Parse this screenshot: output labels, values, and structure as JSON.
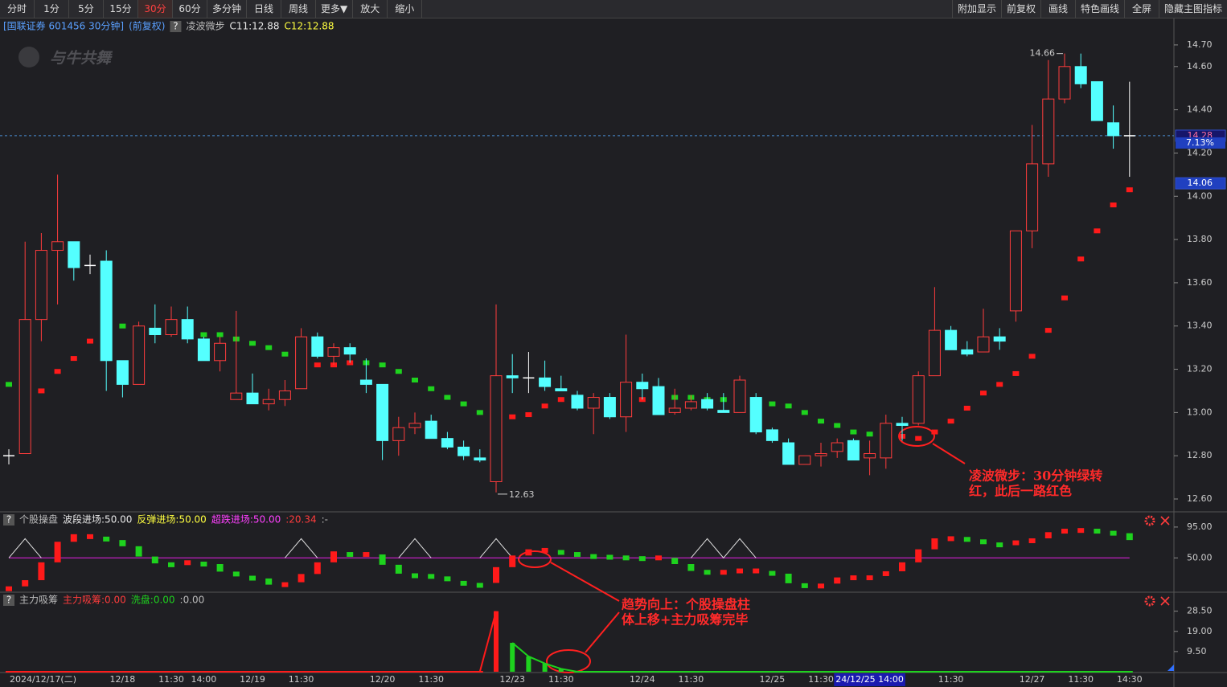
{
  "toolbar": {
    "left": [
      "分时",
      "1分",
      "5分",
      "15分",
      "30分",
      "60分",
      "多分钟",
      "日线",
      "周线",
      "更多▼",
      "放大",
      "缩小"
    ],
    "active_index": 4,
    "right": [
      "附加显示",
      "前复权",
      "画线",
      "特色画线",
      "全屏",
      "隐藏主图指标"
    ]
  },
  "header": {
    "security": "[国联证券 601456 30分钟]",
    "adjust": "(前复权)",
    "help": "?",
    "logo": "与牛共舞"
  },
  "annotations": [
    {
      "lines": [
        "凌波微步：30分钟绿转",
        "红，此后一路红色"
      ]
    },
    {
      "lines": [
        "趋势向上：个股操盘柱",
        "体上移+主力吸筹完毕"
      ]
    }
  ],
  "chart_data": [
    {
      "type": "candlestick",
      "title": "凌波微步",
      "readouts": [
        {
          "text": "C11:12.88",
          "color": "#e8e8e8"
        },
        {
          "text": "C12:12.88",
          "color": "#ffff40"
        }
      ],
      "categories": [
        "2024/12/17(二)",
        null,
        null,
        null,
        null,
        null,
        null,
        "12/18",
        null,
        null,
        "11:30",
        null,
        "14:00",
        null,
        null,
        "12/19",
        null,
        null,
        "11:30",
        null,
        null,
        null,
        null,
        "12/20",
        null,
        null,
        "11:30",
        null,
        null,
        null,
        null,
        "12/23",
        null,
        null,
        "11:30",
        null,
        null,
        null,
        null,
        "12/24",
        null,
        null,
        "11:30",
        null,
        null,
        null,
        null,
        "12/25",
        null,
        null,
        "11:30",
        null,
        null,
        "24/12/25 14:00",
        null,
        null,
        null,
        null,
        "11:30",
        null,
        null,
        null,
        null,
        "12/27",
        null,
        null,
        "11:30",
        null,
        null,
        "14:30"
      ],
      "highlight_category": 53,
      "open": [
        12.8,
        12.81,
        13.43,
        13.75,
        13.79,
        13.68,
        13.7,
        13.24,
        13.13,
        13.39,
        13.36,
        13.43,
        13.34,
        13.24,
        13.06,
        13.09,
        13.04,
        13.06,
        13.11,
        13.35,
        13.26,
        13.3,
        13.15,
        13.13,
        12.87,
        12.93,
        12.96,
        12.88,
        12.84,
        12.79,
        12.68,
        13.17,
        13.16,
        13.16,
        13.11,
        13.08,
        13.02,
        13.07,
        12.98,
        13.14,
        13.12,
        13.0,
        13.02,
        13.06,
        13.01,
        13.0,
        13.07,
        12.92,
        12.86,
        12.76,
        12.8,
        12.82,
        12.87,
        12.79,
        12.79,
        12.95,
        12.95,
        13.17,
        13.38,
        13.29,
        13.28,
        13.35,
        13.47,
        13.84,
        14.15,
        14.45,
        14.6,
        14.53,
        14.34,
        14.28
      ],
      "high": [
        12.83,
        13.79,
        13.83,
        14.1,
        13.79,
        13.73,
        13.75,
        13.24,
        13.42,
        13.5,
        13.49,
        13.49,
        13.35,
        13.35,
        13.47,
        13.18,
        13.11,
        13.15,
        13.39,
        13.37,
        13.32,
        13.32,
        13.25,
        13.13,
        12.98,
        13.0,
        12.99,
        12.91,
        12.87,
        12.83,
        13.5,
        13.27,
        13.28,
        13.24,
        13.17,
        13.1,
        13.09,
        13.09,
        13.36,
        13.18,
        13.16,
        13.11,
        13.08,
        13.09,
        13.09,
        13.17,
        13.09,
        12.93,
        12.88,
        12.8,
        12.86,
        12.88,
        12.88,
        12.87,
        12.99,
        12.98,
        13.19,
        13.58,
        13.4,
        13.33,
        13.48,
        13.39,
        13.84,
        14.33,
        14.63,
        14.66,
        14.66,
        14.53,
        14.42,
        14.53
      ],
      "low": [
        12.76,
        12.81,
        13.33,
        13.5,
        13.61,
        13.64,
        13.1,
        13.07,
        13.13,
        13.32,
        13.35,
        13.32,
        13.24,
        13.19,
        13.06,
        13.04,
        13.01,
        13.03,
        13.11,
        13.25,
        13.22,
        13.23,
        13.09,
        12.78,
        12.8,
        12.9,
        12.88,
        12.83,
        12.78,
        12.77,
        12.63,
        13.09,
        13.09,
        13.1,
        13.1,
        13.01,
        12.9,
        12.97,
        12.91,
        13.06,
        12.99,
        12.99,
        13.01,
        13.01,
        13.0,
        13.0,
        12.9,
        12.86,
        12.76,
        12.76,
        12.75,
        12.79,
        12.78,
        12.71,
        12.74,
        12.87,
        12.94,
        13.17,
        13.29,
        13.26,
        13.28,
        13.29,
        13.42,
        13.76,
        14.09,
        14.43,
        14.5,
        14.35,
        14.22,
        14.09
      ],
      "close": [
        12.8,
        13.43,
        13.75,
        13.79,
        13.67,
        13.68,
        13.24,
        13.13,
        13.4,
        13.36,
        13.43,
        13.34,
        13.24,
        13.32,
        13.09,
        13.04,
        13.06,
        13.1,
        13.35,
        13.26,
        13.3,
        13.27,
        13.13,
        12.87,
        12.93,
        12.95,
        12.88,
        12.84,
        12.8,
        12.78,
        13.17,
        13.16,
        13.16,
        13.12,
        13.1,
        13.02,
        13.07,
        12.98,
        13.14,
        13.11,
        12.99,
        13.02,
        13.05,
        13.02,
        13.0,
        13.15,
        12.91,
        12.87,
        12.76,
        12.8,
        12.81,
        12.86,
        12.78,
        12.81,
        12.95,
        12.94,
        13.17,
        13.38,
        13.29,
        13.27,
        13.35,
        13.33,
        13.84,
        14.15,
        14.45,
        14.6,
        14.52,
        14.35,
        14.28,
        14.28
      ],
      "up_color": "#ff3c3c",
      "down_color": "#54ffff",
      "doji_color": "#ffffff",
      "overlay": {
        "values": [
          13.13,
          13.09,
          13.1,
          13.19,
          13.25,
          13.33,
          13.39,
          13.4,
          13.39,
          13.38,
          13.37,
          13.36,
          13.36,
          13.36,
          13.34,
          13.32,
          13.3,
          13.27,
          13.23,
          13.22,
          13.22,
          13.23,
          13.23,
          13.22,
          13.19,
          13.15,
          13.11,
          13.07,
          13.04,
          13.0,
          12.98,
          12.98,
          12.99,
          13.03,
          13.06,
          13.06,
          13.06,
          13.06,
          13.06,
          13.06,
          13.07,
          13.07,
          13.07,
          13.06,
          13.06,
          13.06,
          13.05,
          13.04,
          13.03,
          13.0,
          12.96,
          12.94,
          12.91,
          12.9,
          12.89,
          12.89,
          12.88,
          12.91,
          12.96,
          13.02,
          13.09,
          13.13,
          13.18,
          13.26,
          13.38,
          13.53,
          13.71,
          13.84,
          13.96,
          14.03
        ],
        "up_color": "#ff1a1a",
        "down_color": "#1ed21e"
      },
      "ylim": [
        12.548,
        14.826
      ],
      "yticks": [
        {
          "value": 14.7,
          "label": "14.70"
        },
        {
          "value": 14.6,
          "label": "14.60"
        },
        {
          "value": 14.4,
          "label": "14.40"
        },
        {
          "value": 14.2,
          "label": "14.20"
        },
        {
          "value": 14.0,
          "label": "14.00"
        },
        {
          "value": 13.8,
          "label": "13.80"
        },
        {
          "value": 13.6,
          "label": "13.60"
        },
        {
          "value": 13.4,
          "label": "13.40"
        },
        {
          "value": 13.2,
          "label": "13.20"
        },
        {
          "value": 13.0,
          "label": "13.00"
        },
        {
          "value": 12.8,
          "label": "12.80"
        },
        {
          "value": 12.6,
          "label": "12.60"
        }
      ],
      "max_label": {
        "value": 14.66,
        "label": "14.66"
      },
      "min_label": {
        "value": 12.63,
        "label": "12.63"
      },
      "price_tags": [
        {
          "value": 14.28,
          "label": "14.28"
        },
        {
          "value": 14.06,
          "label": "14.06"
        }
      ],
      "change_label": "7.13%"
    },
    {
      "type": "steps",
      "title": "个股操盘",
      "readouts": [
        {
          "text": "波段进场:50.00",
          "color": "#e8e8e8"
        },
        {
          "text": "反弹进场:50.00",
          "color": "#ffff40"
        },
        {
          "text": "超跌进场:50.00",
          "color": "#ff40ff"
        },
        {
          "text": ":20.34",
          "color": "#ff3c3c"
        },
        {
          "text": ":-",
          "color": "#bbbbbb"
        }
      ],
      "ylim": [
        0,
        116
      ],
      "yticks": [
        {
          "value": 95,
          "label": "95.00"
        },
        {
          "value": 50,
          "label": "50.00"
        }
      ],
      "values": [
        5,
        14,
        40,
        70,
        81,
        81,
        76,
        67,
        52,
        42,
        40,
        43,
        41,
        30,
        24,
        20,
        11,
        11,
        23,
        40,
        56,
        55,
        55,
        40,
        27,
        24,
        23,
        16,
        13,
        10,
        33,
        50,
        59,
        61,
        58,
        55,
        52,
        51,
        50,
        49,
        50,
        41,
        31,
        29,
        29,
        31,
        31,
        27,
        13,
        6,
        9,
        18,
        21,
        21,
        27,
        40,
        59,
        75,
        78,
        77,
        70,
        69,
        72,
        75,
        84,
        89,
        90,
        89,
        86,
        76
      ],
      "up_color": "#ff1a1a",
      "down_color": "#1ed21e",
      "series": [
        {
          "color": "#e0e0e0",
          "values": [
            50,
            78,
            50,
            null,
            null,
            null,
            null,
            null,
            null,
            null,
            null,
            null,
            null,
            null,
            null,
            null,
            null,
            50,
            78,
            50,
            null,
            null,
            null,
            null,
            50,
            78,
            50,
            null,
            null,
            50,
            78,
            50,
            null,
            null,
            null,
            null,
            null,
            null,
            null,
            null,
            null,
            null,
            50,
            78,
            50,
            78,
            50,
            null,
            null,
            null,
            null,
            null,
            null,
            null,
            null,
            null,
            null,
            null,
            null,
            null,
            null,
            null,
            null,
            null,
            null,
            null,
            null,
            null,
            null,
            null
          ]
        },
        {
          "color": "#d020d0",
          "values": [
            50,
            50,
            50,
            50,
            50,
            50,
            50,
            50,
            50,
            50,
            50,
            50,
            50,
            50,
            50,
            50,
            50,
            50,
            50,
            50,
            50,
            50,
            50,
            50,
            50,
            50,
            50,
            50,
            50,
            50,
            50,
            50,
            50,
            50,
            50,
            50,
            50,
            50,
            50,
            50,
            50,
            50,
            50,
            50,
            50,
            50,
            50,
            50,
            50,
            50,
            50,
            50,
            50,
            50,
            50,
            50,
            50,
            50,
            50,
            50,
            50,
            50,
            50,
            50,
            50,
            50,
            50,
            50,
            50,
            50
          ]
        }
      ]
    },
    {
      "type": "bar",
      "title": "主力吸筹",
      "readouts": [
        {
          "text": "主力吸筹:0.00",
          "color": "#ff3c3c"
        },
        {
          "text": "洗盘:0.00",
          "color": "#1ed21e"
        },
        {
          "text": ":0.00",
          "color": "#bbbbbb"
        }
      ],
      "ylim": [
        0,
        36.3
      ],
      "yticks": [
        {
          "value": 28.5,
          "label": "28.50"
        },
        {
          "value": 19,
          "label": "19.00"
        },
        {
          "value": 9.5,
          "label": "9.50"
        }
      ],
      "series": [
        {
          "color": "#ff1a1a",
          "values": [
            0,
            0,
            0,
            0,
            0,
            0,
            0,
            0,
            0,
            0,
            0,
            0,
            0,
            0,
            0,
            0,
            0,
            0,
            0,
            0,
            0,
            0,
            0,
            0,
            0,
            0,
            0,
            0,
            0,
            0,
            28.5,
            null,
            null,
            null,
            null,
            null,
            null,
            null,
            null,
            null,
            null,
            null,
            null,
            null,
            null,
            null,
            null,
            null,
            null,
            null,
            null,
            null,
            null,
            null,
            null,
            null,
            null,
            null,
            null,
            null,
            null,
            null,
            null,
            null,
            null,
            null,
            null,
            null,
            null,
            null
          ]
        },
        {
          "color": "#1ed21e",
          "values": [
            null,
            null,
            null,
            null,
            null,
            null,
            null,
            null,
            null,
            null,
            null,
            null,
            null,
            null,
            null,
            null,
            null,
            null,
            null,
            null,
            null,
            null,
            null,
            null,
            null,
            null,
            null,
            null,
            null,
            null,
            null,
            13.6,
            7.2,
            3.9,
            1.4,
            0,
            0,
            0,
            0,
            0,
            0,
            0,
            0,
            0,
            0,
            0,
            0,
            0,
            0,
            0,
            0,
            0,
            0,
            0,
            0,
            0,
            0,
            0,
            0,
            0,
            0,
            0,
            0,
            0,
            0,
            0,
            0,
            0,
            0,
            0
          ]
        }
      ]
    }
  ]
}
